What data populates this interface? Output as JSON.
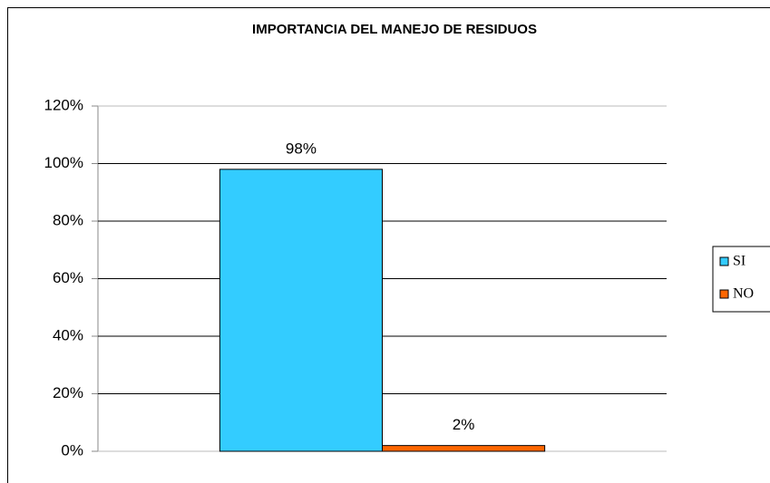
{
  "chart_data": {
    "type": "bar",
    "title": "IMPORTANCIA DEL MANEJO DE RESIDUOS",
    "categories": [
      null
    ],
    "series": [
      {
        "name": "SI",
        "color": "#33ccff",
        "values": [
          98
        ],
        "value_labels": [
          "98%"
        ]
      },
      {
        "name": "NO",
        "color": "#ff6600",
        "values": [
          2
        ],
        "value_labels": [
          "2%"
        ]
      }
    ],
    "ylim": [
      0,
      120
    ],
    "yticks": [
      {
        "value": 0,
        "label": "0%"
      },
      {
        "value": 20,
        "label": "20%"
      },
      {
        "value": 40,
        "label": "40%"
      },
      {
        "value": 60,
        "label": "60%"
      },
      {
        "value": 80,
        "label": "80%"
      },
      {
        "value": 100,
        "label": "100%"
      },
      {
        "value": 120,
        "label": "120%"
      }
    ],
    "grid": true,
    "legend": "right"
  }
}
